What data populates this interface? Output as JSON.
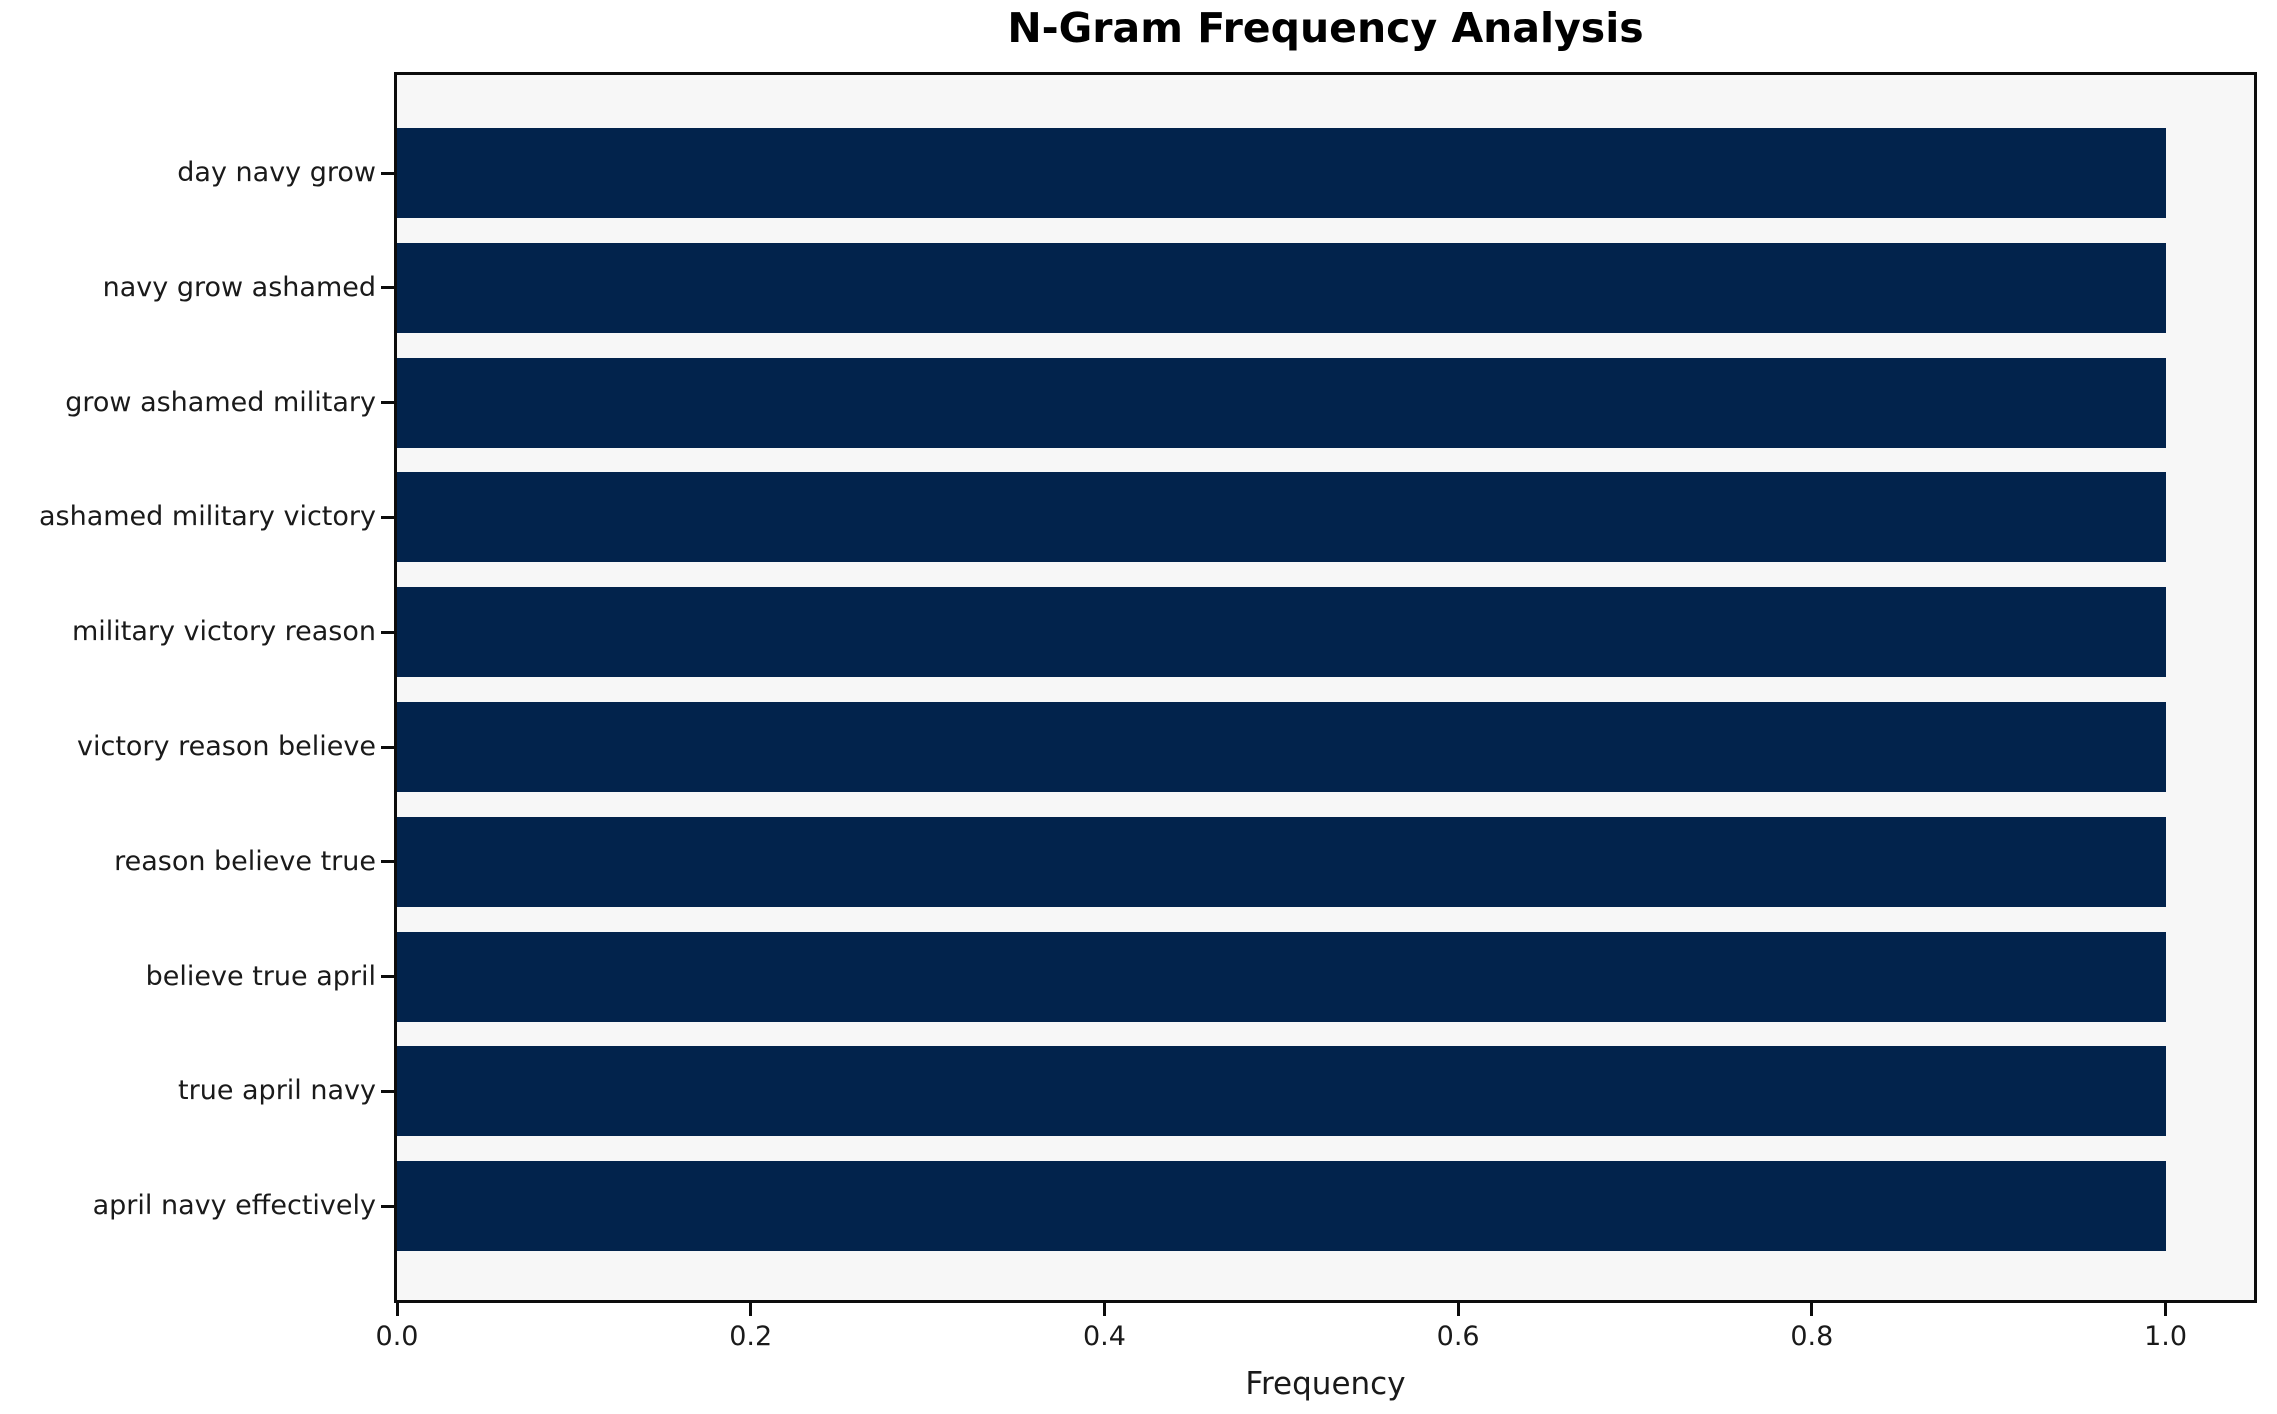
{
  "chart_data": {
    "type": "bar",
    "orientation": "horizontal",
    "title": "N-Gram Frequency Analysis",
    "xlabel": "Frequency",
    "ylabel": "",
    "categories": [
      "day navy grow",
      "navy grow ashamed",
      "grow ashamed military",
      "ashamed military victory",
      "military victory reason",
      "victory reason believe",
      "reason believe true",
      "believe true april",
      "true april navy",
      "april navy effectively"
    ],
    "values": [
      1.0,
      1.0,
      1.0,
      1.0,
      1.0,
      1.0,
      1.0,
      1.0,
      1.0,
      1.0
    ],
    "xlim": [
      0.0,
      1.05
    ],
    "xticks": [
      0.0,
      0.2,
      0.4,
      0.6,
      0.8,
      1.0
    ],
    "xtick_labels": [
      "0.0",
      "0.2",
      "0.4",
      "0.6",
      "0.8",
      "1.0"
    ],
    "grid": false,
    "legend": null,
    "colors": {
      "bar": "#02234c",
      "plot_background": "#f7f7f7",
      "figure_background": "#ffffff",
      "spine": "#0c0c0c",
      "text": "#1a1a1a"
    }
  }
}
